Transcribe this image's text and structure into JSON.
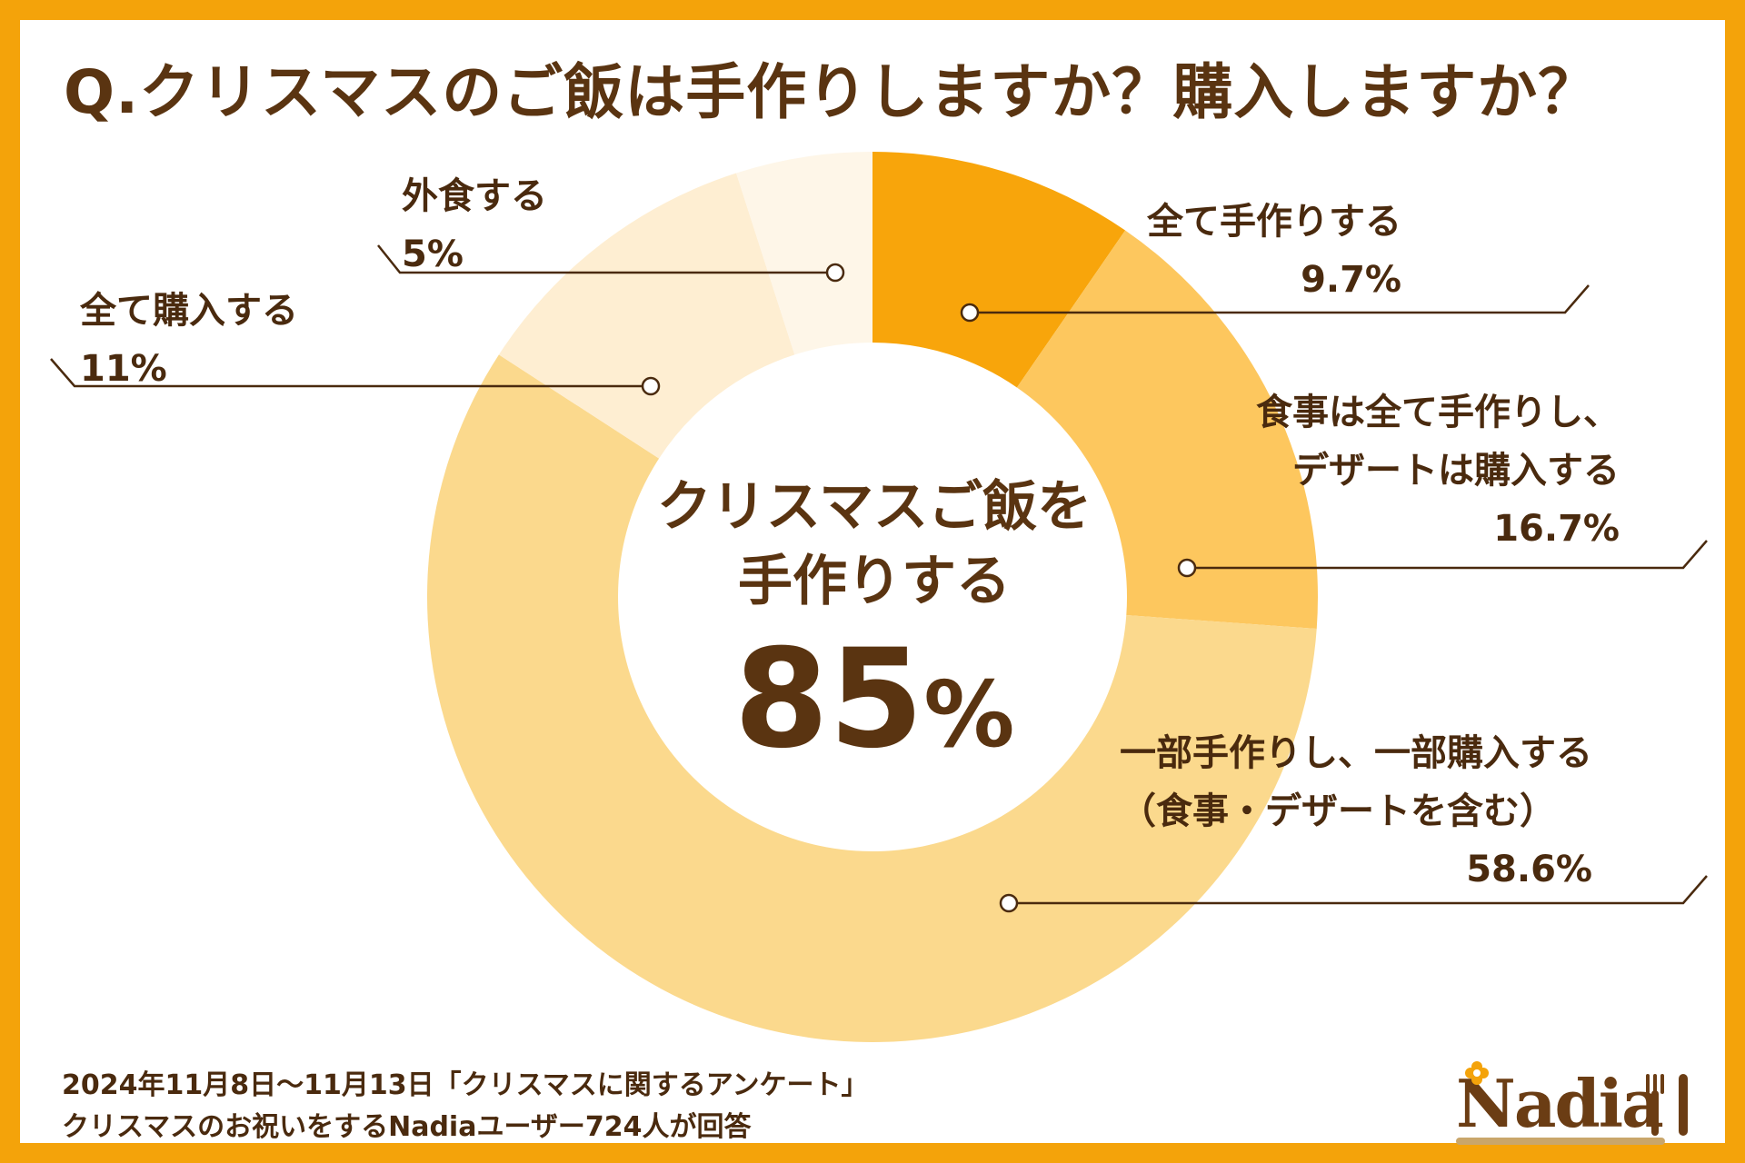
{
  "title": "Q.クリスマスのご飯は手作りしますか？購入しますか？",
  "center": {
    "line1": "クリスマスご飯を",
    "line2": "手作りする",
    "value": "85",
    "sign": "%"
  },
  "footer": {
    "line1": "2024年11月8日〜11月13日「クリスマスに関するアンケート」",
    "line2": "クリスマスのお祝いをするNadiaユーザー724人が回答"
  },
  "logo": {
    "text": "Nadia"
  },
  "chart_data": {
    "type": "pie",
    "donut": true,
    "start_angle": "12 o'clock",
    "direction": "clockwise",
    "slices": [
      {
        "label": "全て手作りする",
        "label_lines": [
          "全て手作りする"
        ],
        "value": 9.7,
        "value_label": "9.7%",
        "color": "#F8A50B"
      },
      {
        "label": "食事は全て手作りし、デザートは購入する",
        "label_lines": [
          "食事は全て手作りし、",
          "デザートは購入する"
        ],
        "value": 16.7,
        "value_label": "16.7%",
        "color": "#FDC75E"
      },
      {
        "label": "一部手作りし、一部購入する（食事・デザートを含む）",
        "label_lines": [
          "一部手作りし、一部購入する",
          "（食事・デザートを含む）"
        ],
        "value": 58.6,
        "value_label": "58.6%",
        "color": "#FBD98D"
      },
      {
        "label": "全て購入する",
        "label_lines": [
          "全て購入する"
        ],
        "value": 11,
        "value_label": "11%",
        "color": "#FEEED2"
      },
      {
        "label": "外食する",
        "label_lines": [
          "外食する"
        ],
        "value": 5,
        "value_label": "5%",
        "color": "#FEF6E8"
      }
    ]
  }
}
